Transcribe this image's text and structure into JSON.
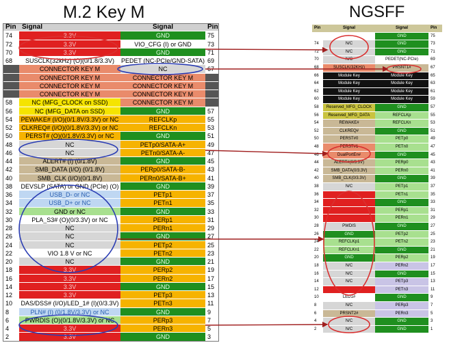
{
  "titles": {
    "m2": "M.2 Key M",
    "ngsff": "NGSFF"
  },
  "m2_headers": [
    "Pin",
    "Signal",
    "Signal",
    "Pin"
  ],
  "m2_left": [
    {
      "pin": "74",
      "sig": "3.3V",
      "style": "red"
    },
    {
      "pin": "72",
      "sig": "3.3V",
      "style": "red"
    },
    {
      "pin": "70",
      "sig": "3.3V",
      "style": "red"
    },
    {
      "pin": "68",
      "sig": "SUSCLK(32kHz) (O)(0/1.8/3.3V)",
      "style": "white"
    },
    {
      "pin": "",
      "sig": "CONNECTOR KEY M",
      "style": "salmon"
    },
    {
      "pin": "",
      "sig": "CONNECTOR KEY M",
      "style": "salmon"
    },
    {
      "pin": "",
      "sig": "CONNECTOR KEY M",
      "style": "salmon"
    },
    {
      "pin": "",
      "sig": "CONNECTOR KEY M",
      "style": "salmon"
    },
    {
      "pin": "58",
      "sig": "NC (MFG_CLOCK on SSD)",
      "style": "yellow"
    },
    {
      "pin": "56",
      "sig": "NC (MFG_DATA on SSD)",
      "style": "yellow"
    },
    {
      "pin": "54",
      "sig": "PEWAKE# (I/O)(0/1.8V/3.3V) or NC",
      "style": "orange"
    },
    {
      "pin": "52",
      "sig": "CLKREQ# (I/O)(0/1.8V/3.3V) or NC",
      "style": "orange"
    },
    {
      "pin": "50",
      "sig": "PERST# (O)(0/1.8V/3.3V) or NC",
      "style": "orange"
    },
    {
      "pin": "48",
      "sig": "NC",
      "style": "gray"
    },
    {
      "pin": "46",
      "sig": "NC",
      "style": "gray"
    },
    {
      "pin": "44",
      "sig": "ALERT# (I) (0/1.8V)",
      "style": "tan"
    },
    {
      "pin": "42",
      "sig": "SMB_DATA (I/O) (0/1.8V)",
      "style": "tan"
    },
    {
      "pin": "40",
      "sig": "SMB_CLK (I/O)(0/1.8V)",
      "style": "tan"
    },
    {
      "pin": "38",
      "sig": "DEVSLP (SATA) or GND (PCIe) (O)",
      "style": "white"
    },
    {
      "pin": "36",
      "sig": "USB_D- or NC",
      "style": "lightblue"
    },
    {
      "pin": "34",
      "sig": "USB_D+ or NC",
      "style": "lightblue"
    },
    {
      "pin": "32",
      "sig": "GND or NC",
      "style": "lightgreen"
    },
    {
      "pin": "30",
      "sig": "PLA_S3# (O)(0/3.3V) or NC",
      "style": "white"
    },
    {
      "pin": "28",
      "sig": "NC",
      "style": "gray"
    },
    {
      "pin": "26",
      "sig": "NC",
      "style": "gray"
    },
    {
      "pin": "24",
      "sig": "NC",
      "style": "gray"
    },
    {
      "pin": "22",
      "sig": "VIO 1.8 V or NC",
      "style": "white"
    },
    {
      "pin": "20",
      "sig": "NC",
      "style": "gray"
    },
    {
      "pin": "18",
      "sig": "3.3V",
      "style": "red"
    },
    {
      "pin": "16",
      "sig": "3.3V",
      "style": "red"
    },
    {
      "pin": "14",
      "sig": "3.3V",
      "style": "red"
    },
    {
      "pin": "12",
      "sig": "3.3V",
      "style": "red"
    },
    {
      "pin": "10",
      "sig": "DAS/DSS# (I/O)/LED_1# (I)(0/3.3V)",
      "style": "white"
    },
    {
      "pin": "8",
      "sig": "PLN# (I) (0/1.8V/3.3V) or NC",
      "style": "lightblue"
    },
    {
      "pin": "6",
      "sig": "PWRDIS (O)(0/1.8V/3.3V) or NC",
      "style": "lightgreen"
    },
    {
      "pin": "4",
      "sig": "3.3V",
      "style": "red"
    },
    {
      "pin": "2",
      "sig": "3.3V",
      "style": "red"
    }
  ],
  "m2_right": [
    {
      "pin": "75",
      "sig": "GND",
      "style": "green"
    },
    {
      "pin": "73",
      "sig": "VIO_CFG (I) or GND",
      "style": "white"
    },
    {
      "pin": "71",
      "sig": "GND",
      "style": "green"
    },
    {
      "pin": "69",
      "sig": "PEDET (NC-PCIe/GND-SATA)",
      "style": "white"
    },
    {
      "pin": "67",
      "sig": "NC",
      "style": "gray"
    },
    {
      "pin": "",
      "sig": "CONNECTOR KEY M",
      "style": "salmon"
    },
    {
      "pin": "",
      "sig": "CONNECTOR KEY M",
      "style": "salmon"
    },
    {
      "pin": "",
      "sig": "CONNECTOR KEY M",
      "style": "salmon"
    },
    {
      "pin": "",
      "sig": "CONNECTOR KEY M",
      "style": "salmon"
    },
    {
      "pin": "57",
      "sig": "GND",
      "style": "green"
    },
    {
      "pin": "55",
      "sig": "REFCLKp",
      "style": "orange"
    },
    {
      "pin": "53",
      "sig": "REFCLKn",
      "style": "orange"
    },
    {
      "pin": "51",
      "sig": "GND",
      "style": "green"
    },
    {
      "pin": "49",
      "sig": "PETp0/SATA-A+",
      "style": "orange"
    },
    {
      "pin": "47",
      "sig": "PETn0/SATA-A-",
      "style": "orange"
    },
    {
      "pin": "45",
      "sig": "GND",
      "style": "green"
    },
    {
      "pin": "43",
      "sig": "PERp0/SATA-B-",
      "style": "orange"
    },
    {
      "pin": "41",
      "sig": "PERn0/SATA-B+",
      "style": "orange"
    },
    {
      "pin": "39",
      "sig": "GND",
      "style": "green"
    },
    {
      "pin": "37",
      "sig": "PETp1",
      "style": "orange"
    },
    {
      "pin": "35",
      "sig": "PETn1",
      "style": "orange"
    },
    {
      "pin": "33",
      "sig": "GND",
      "style": "green"
    },
    {
      "pin": "31",
      "sig": "PERp1",
      "style": "orange"
    },
    {
      "pin": "29",
      "sig": "PERn1",
      "style": "orange"
    },
    {
      "pin": "27",
      "sig": "GND",
      "style": "green"
    },
    {
      "pin": "25",
      "sig": "PETp2",
      "style": "orange"
    },
    {
      "pin": "23",
      "sig": "PETn2",
      "style": "orange"
    },
    {
      "pin": "21",
      "sig": "GND",
      "style": "green"
    },
    {
      "pin": "19",
      "sig": "PERp2",
      "style": "orange"
    },
    {
      "pin": "17",
      "sig": "PERn2",
      "style": "orange"
    },
    {
      "pin": "15",
      "sig": "GND",
      "style": "green"
    },
    {
      "pin": "13",
      "sig": "PETp3",
      "style": "orange"
    },
    {
      "pin": "11",
      "sig": "PETn3",
      "style": "orange"
    },
    {
      "pin": "9",
      "sig": "GND",
      "style": "green"
    },
    {
      "pin": "7",
      "sig": "PERp3",
      "style": "orange"
    },
    {
      "pin": "5",
      "sig": "PERn3",
      "style": "orange"
    },
    {
      "pin": "3",
      "sig": "GND",
      "style": "green"
    },
    {
      "pin": "1",
      "sig": "GND",
      "style": "green"
    }
  ],
  "ng_headers": [
    "Pin",
    "Signal",
    "Signal",
    "Pin"
  ],
  "ng_rows": [
    {
      "pl": "",
      "sl": "",
      "sr": "GND",
      "pr": "75",
      "cl": "white",
      "cr": "green"
    },
    {
      "pl": "74",
      "sl": "N/C",
      "sr": "GND",
      "pr": "73",
      "cl": "gray",
      "cr": "green"
    },
    {
      "pl": "72",
      "sl": "N/C",
      "sr": "GND",
      "pr": "71",
      "cl": "gray",
      "cr": "green"
    },
    {
      "pl": "70",
      "sl": "N/C",
      "sr": "PEDET(NC-PCIe)",
      "pr": "69",
      "cl": "gray",
      "cr": "white"
    },
    {
      "pl": "68",
      "sl": "SUSCLK(32KHz)",
      "sr": "PRSNT1#",
      "pr": "67",
      "cl": "salmon",
      "cr": "tan"
    },
    {
      "pl": "66",
      "sl": "Module Key",
      "sr": "Module Key",
      "pr": "65",
      "cl": "black",
      "cr": "black"
    },
    {
      "pl": "64",
      "sl": "Module Key",
      "sr": "Module Key",
      "pr": "63",
      "cl": "black",
      "cr": "black"
    },
    {
      "pl": "62",
      "sl": "Module Key",
      "sr": "Module Key",
      "pr": "61",
      "cl": "black",
      "cr": "black"
    },
    {
      "pl": "60",
      "sl": "Module Key",
      "sr": "Module Key",
      "pr": "59",
      "cl": "black",
      "cr": "black"
    },
    {
      "pl": "58",
      "sl": "Reserved_MFG_CLOCK",
      "sr": "GND",
      "pr": "57",
      "cl": "olive",
      "cr": "green"
    },
    {
      "pl": "56",
      "sl": "Reserved_MFG_DATA",
      "sr": "REFCLKp",
      "pr": "55",
      "cl": "olive",
      "cr": "lightgreen"
    },
    {
      "pl": "54",
      "sl": "REWAKE#",
      "sr": "REFCLKn",
      "pr": "53",
      "cl": "tan",
      "cr": "lightgreen"
    },
    {
      "pl": "52",
      "sl": "CLKREQ#",
      "sr": "GND",
      "pr": "51",
      "cl": "tan",
      "cr": "green"
    },
    {
      "pl": "50",
      "sl": "PERST#0",
      "sr": "PETp0",
      "pr": "49",
      "cl": "tan",
      "cr": "lightgreen"
    },
    {
      "pl": "48",
      "sl": "PERST#1",
      "sr": "PETn0",
      "pr": "47",
      "cl": "salmon",
      "cr": "lightgreen"
    },
    {
      "pl": "46",
      "sl": "DualPortEn#",
      "sr": "GND",
      "pr": "45",
      "cl": "salmon",
      "cr": "green"
    },
    {
      "pl": "44",
      "sl": "ALERT#(0/3.3V)",
      "sr": "PERp0",
      "pr": "43",
      "cl": "tan",
      "cr": "lightgreen"
    },
    {
      "pl": "42",
      "sl": "SMB_DATA(0/3.3V)",
      "sr": "PERn0",
      "pr": "41",
      "cl": "tan",
      "cr": "lightgreen"
    },
    {
      "pl": "40",
      "sl": "SMB_CLK(0/3.3V)",
      "sr": "GND",
      "pr": "39",
      "cl": "tan",
      "cr": "green"
    },
    {
      "pl": "38",
      "sl": "N/C",
      "sr": "PETp1",
      "pr": "37",
      "cl": "gray",
      "cr": "lightgreen"
    },
    {
      "pl": "36",
      "sl": "",
      "sr": "PETn1",
      "pr": "35",
      "cl": "red",
      "cr": "lightgreen"
    },
    {
      "pl": "34",
      "sl": "",
      "sr": "GND",
      "pr": "33",
      "cl": "red",
      "cr": "green"
    },
    {
      "pl": "32",
      "sl": "",
      "sr": "PERp1",
      "pr": "31",
      "cl": "red",
      "cr": "lightgreen"
    },
    {
      "pl": "30",
      "sl": "",
      "sr": "PERn1",
      "pr": "29",
      "cl": "red",
      "cr": "lightgreen"
    },
    {
      "pl": "28",
      "sl": "PWDIS",
      "sr": "GND",
      "pr": "27",
      "cl": "gray",
      "cr": "green"
    },
    {
      "pl": "26",
      "sl": "GND",
      "sr": "PETp2",
      "pr": "25",
      "cl": "green",
      "cr": "lightgreen"
    },
    {
      "pl": "24",
      "sl": "REFCLKp1",
      "sr": "PETn2",
      "pr": "23",
      "cl": "lightgreen",
      "cr": "lightgreen"
    },
    {
      "pl": "22",
      "sl": "REFCLKn1",
      "sr": "GND",
      "pr": "21",
      "cl": "lightgreen",
      "cr": "green"
    },
    {
      "pl": "20",
      "sl": "GND",
      "sr": "PERp2",
      "pr": "19",
      "cl": "green",
      "cr": "lightgreen"
    },
    {
      "pl": "18",
      "sl": "N/C",
      "sr": "PERn2",
      "pr": "17",
      "cl": "gray",
      "cr": "lavender"
    },
    {
      "pl": "16",
      "sl": "N/C",
      "sr": "GND",
      "pr": "15",
      "cl": "gray",
      "cr": "green"
    },
    {
      "pl": "14",
      "sl": "N/C",
      "sr": "PETp3",
      "pr": "13",
      "cl": "gray",
      "cr": "lavender"
    },
    {
      "pl": "12",
      "sl": "",
      "sr": "PETn3",
      "pr": "11",
      "cl": "red",
      "cr": "lavender"
    },
    {
      "pl": "10",
      "sl": "LED1#",
      "sr": "GND",
      "pr": "9",
      "cl": "white",
      "cr": "green"
    },
    {
      "pl": "8",
      "sl": "N/C",
      "sr": "PERp3",
      "pr": "7",
      "cl": "gray",
      "cr": "lavender"
    },
    {
      "pl": "6",
      "sl": "PRSNT2#",
      "sr": "PERn3",
      "pr": "5",
      "cl": "tan",
      "cr": "lavender"
    },
    {
      "pl": "4",
      "sl": "N/C",
      "sr": "GND",
      "pr": "3",
      "cl": "gray",
      "cr": "green"
    },
    {
      "pl": "2",
      "sl": "N/C",
      "sr": "GND",
      "pr": "1",
      "cl": "gray",
      "cr": "green"
    }
  ],
  "colors": {
    "red": "#e02020",
    "salmon": "#e98b6b",
    "yellow": "#f5e400",
    "orange": "#f6b300",
    "gray": "#d6d6d6",
    "tan": "#c9b896",
    "white": "#ffffff",
    "lightblue": "#bfd7f2",
    "lightgreen": "#a8e08f",
    "green": "#1f8f1f",
    "black": "#111111",
    "olive": "#c9c33f",
    "lavender": "#c9c4e6",
    "header": "#d0d0d0",
    "ellipse_red": "#d93030",
    "ellipse_blue": "#2b3db3",
    "arrow": "#a01e1e"
  }
}
